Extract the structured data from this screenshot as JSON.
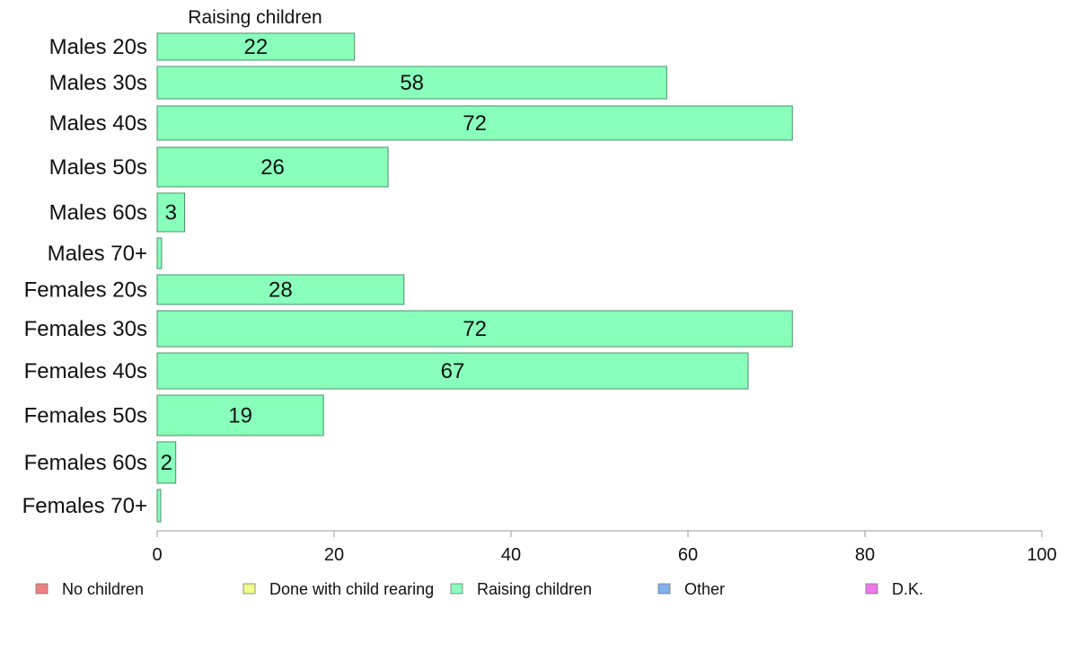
{
  "chart_data": {
    "type": "bar",
    "orientation": "horizontal",
    "title": "",
    "series_label": "Raising children",
    "xlabel": "",
    "ylabel": "",
    "xlim": [
      0,
      100
    ],
    "x_ticks": [
      0,
      20,
      40,
      60,
      80,
      100
    ],
    "grid": false,
    "categories": [
      "Males 20s",
      "Males 30s",
      "Males 40s",
      "Males 50s",
      "Males 60s",
      "Males 70+",
      "Females 20s",
      "Females 30s",
      "Females 40s",
      "Females 50s",
      "Females 60s",
      "Females 70+"
    ],
    "values": [
      22.3,
      57.6,
      71.8,
      26.1,
      3.1,
      0.5,
      27.9,
      71.8,
      66.8,
      18.8,
      2.1,
      0.4
    ],
    "data_labels": [
      "22",
      "58",
      "72",
      "26",
      "3",
      "",
      "28",
      "72",
      "67",
      "19",
      "2",
      ""
    ],
    "series_color": "#88ffbb",
    "legend_placement": "bottom",
    "legend": [
      {
        "name": "No children",
        "color": "#f08080"
      },
      {
        "name": "Done with child rearing",
        "color": "#eeff88"
      },
      {
        "name": "Raising children",
        "color": "#88ffbb"
      },
      {
        "name": "Other",
        "color": "#80b0f0"
      },
      {
        "name": "D.K.",
        "color": "#ee77ee"
      }
    ]
  }
}
